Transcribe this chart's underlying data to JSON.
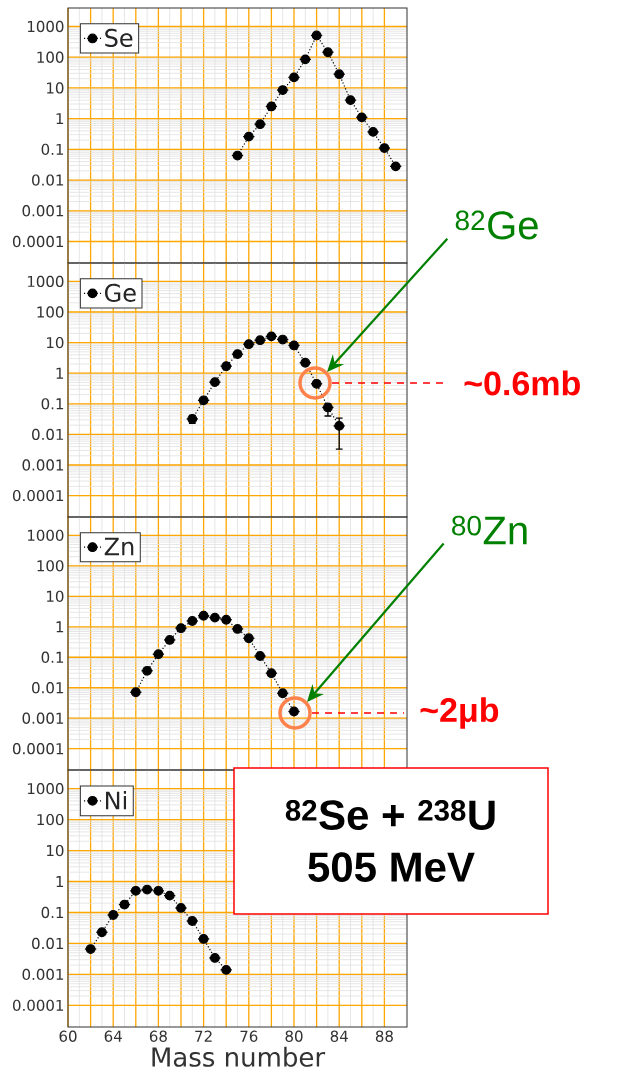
{
  "chart_data": [
    {
      "type": "line",
      "log": "y",
      "grid": true,
      "legend": "top left",
      "marker": "circle",
      "line_style": "dotted",
      "tick_labels": "y",
      "xlim": [
        60,
        90
      ],
      "ylim": [
        2e-05,
        4000
      ],
      "xticks": [
        60,
        {
          "value": 62,
          "label": null
        },
        64,
        {
          "value": 66,
          "label": null
        },
        68,
        {
          "value": 70,
          "label": null
        },
        72,
        {
          "value": 74,
          "label": null
        },
        76,
        {
          "value": 78,
          "label": null
        },
        80,
        {
          "value": 82,
          "label": null
        },
        84,
        {
          "value": 86,
          "label": null
        },
        88
      ],
      "yticks": [
        0.0001,
        0.001,
        0.01,
        0.1,
        1,
        10,
        100,
        1000
      ],
      "x": [
        75,
        76,
        77,
        78,
        79,
        80,
        81,
        82,
        83,
        84,
        85,
        86,
        87,
        88,
        89
      ],
      "series": [
        {
          "name": "Se",
          "color": "#000000",
          "values": [
            0.063,
            0.26,
            0.66,
            2.5,
            8.5,
            22,
            85,
            510,
            145,
            28,
            4.0,
            1.1,
            0.37,
            0.11,
            0.028
          ],
          "xerrors": [
            0.5,
            0.5,
            0.5,
            0.5,
            0.5,
            0.5,
            0.5,
            0.5,
            0.5,
            0.5,
            0.5,
            0.5,
            0.5,
            0.5,
            0.5
          ]
        }
      ]
    },
    {
      "type": "line",
      "log": "y",
      "grid": true,
      "legend": "top left",
      "marker": "circle",
      "line_style": "dotted",
      "tick_labels": "y",
      "xlim": [
        60,
        90
      ],
      "ylim": [
        2e-05,
        4000
      ],
      "xticks": [
        60,
        {
          "value": 62,
          "label": null
        },
        64,
        {
          "value": 66,
          "label": null
        },
        68,
        {
          "value": 70,
          "label": null
        },
        72,
        {
          "value": 74,
          "label": null
        },
        76,
        {
          "value": 78,
          "label": null
        },
        80,
        {
          "value": 82,
          "label": null
        },
        84,
        {
          "value": 86,
          "label": null
        },
        88
      ],
      "yticks": [
        0.0001,
        0.001,
        0.01,
        0.1,
        1,
        10,
        100,
        1000
      ],
      "x": [
        71,
        72,
        73,
        74,
        75,
        76,
        77,
        78,
        79,
        80,
        81,
        82,
        83,
        84
      ],
      "series": [
        {
          "name": "Ge",
          "color": "#000000",
          "values": [
            0.032,
            0.13,
            0.51,
            1.7,
            4.2,
            8.9,
            12,
            16,
            12.6,
            8.1,
            2.2,
            0.45,
            0.076,
            0.019
          ],
          "errors": [
            [
              0.023,
              0.042
            ],
            null,
            null,
            null,
            null,
            null,
            null,
            null,
            null,
            null,
            null,
            null,
            [
              0.04,
              0.1
            ],
            [
              0.0033,
              0.034
            ]
          ],
          "xerrors": [
            0.5,
            0.5,
            0.5,
            0.5,
            0.5,
            0.5,
            0.5,
            0.5,
            0.5,
            0.5,
            0.5,
            0.5,
            0.5,
            0.5
          ]
        }
      ],
      "annotations": [
        "$^{82}$Ge",
        "**~0.6mb**"
      ]
    },
    {
      "type": "line",
      "log": "y",
      "grid": true,
      "legend": "top left",
      "marker": "circle",
      "line_style": "dotted",
      "tick_labels": "y",
      "xlim": [
        60,
        90
      ],
      "ylim": [
        2e-05,
        4000
      ],
      "xticks": [
        60,
        {
          "value": 62,
          "label": null
        },
        64,
        {
          "value": 66,
          "label": null
        },
        68,
        {
          "value": 70,
          "label": null
        },
        72,
        {
          "value": 74,
          "label": null
        },
        76,
        {
          "value": 78,
          "label": null
        },
        80,
        {
          "value": 82,
          "label": null
        },
        84,
        {
          "value": 86,
          "label": null
        },
        88
      ],
      "yticks": [
        0.0001,
        0.001,
        0.01,
        0.1,
        1,
        10,
        100,
        1000
      ],
      "x": [
        66,
        67,
        68,
        69,
        70,
        71,
        72,
        73,
        74,
        75,
        76,
        77,
        78,
        79,
        80
      ],
      "series": [
        {
          "name": "Zn",
          "color": "#000000",
          "values": [
            0.0071,
            0.036,
            0.126,
            0.37,
            0.9,
            1.55,
            2.3,
            2.0,
            1.7,
            0.85,
            0.42,
            0.11,
            0.03,
            0.0066,
            0.00166
          ],
          "xerrors": [
            0.5,
            0.5,
            0.5,
            0.5,
            0.5,
            0.5,
            0.5,
            0.5,
            0.5,
            0.5,
            0.5,
            0.5,
            0.5,
            0.5,
            0.5
          ]
        }
      ],
      "annotations": [
        "$^{80}$Zn",
        "**~2μb**"
      ]
    },
    {
      "type": "line",
      "log": "y",
      "grid": true,
      "legend": "top left",
      "marker": "circle",
      "line_style": "dotted",
      "xlim": [
        60,
        90
      ],
      "ylim": [
        2e-05,
        4000
      ],
      "xlabel": "Mass number",
      "xticks": [
        60,
        {
          "value": 62,
          "label": null
        },
        64,
        {
          "value": 66,
          "label": null
        },
        68,
        {
          "value": 70,
          "label": null
        },
        72,
        {
          "value": 74,
          "label": null
        },
        76,
        {
          "value": 78,
          "label": null
        },
        80,
        {
          "value": 82,
          "label": null
        },
        84,
        {
          "value": 86,
          "label": null
        },
        88
      ],
      "yticks": [
        0.0001,
        0.001,
        0.01,
        0.1,
        1,
        10,
        100,
        1000
      ],
      "x": [
        62,
        63,
        64,
        65,
        66,
        67,
        68,
        69,
        70,
        71,
        72,
        73,
        74
      ],
      "series": [
        {
          "name": "Ni",
          "color": "#000000",
          "values": [
            0.0066,
            0.023,
            0.083,
            0.18,
            0.5,
            0.55,
            0.5,
            0.35,
            0.14,
            0.053,
            0.014,
            0.0034,
            0.0014
          ],
          "xerrors": [
            0.5,
            0.5,
            0.5,
            0.5,
            0.5,
            0.5,
            0.5,
            0.5,
            0.5,
            0.5,
            0.5,
            0.5,
            0.5
          ]
        }
      ],
      "annotations": [
        "$^{82}$Se + $^{238}$U",
        "505 MeV"
      ]
    }
  ]
}
